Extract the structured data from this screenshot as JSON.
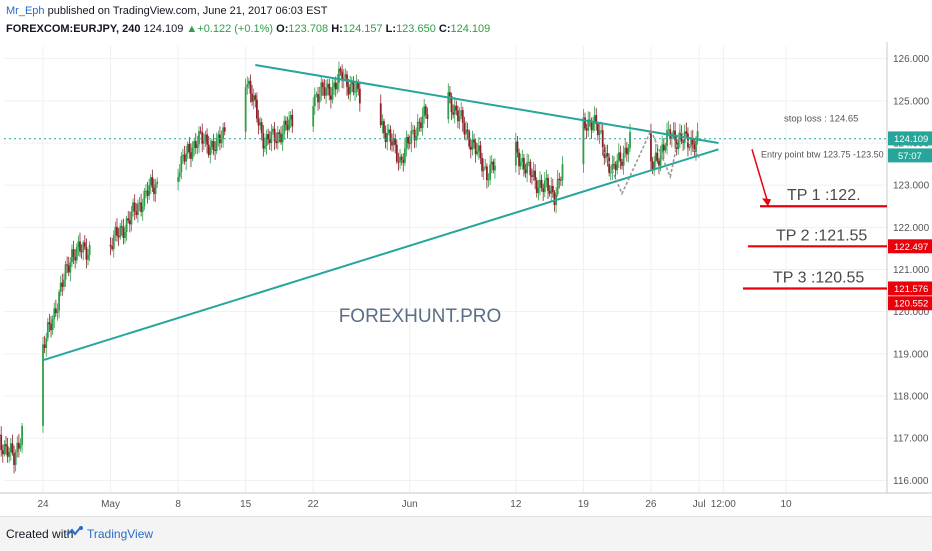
{
  "header": {
    "author": "Mr_Eph",
    "published_text": " published on TradingView.com, June 21, 2017 06:03 EST",
    "symbol": "FOREXCOM:EURJPY, 240",
    "last": "124.109",
    "change": "+0.122 (+0.1%)",
    "open_label": "O:",
    "open": "123.708",
    "high_label": "H:",
    "high": "124.157",
    "low_label": "L:",
    "low": "123.650",
    "close_label": "C:",
    "close": "124.109"
  },
  "watermark": "FOREXHUNT.PRO",
  "footer": {
    "created_with": "Created with",
    "brand": "TradingView"
  },
  "colors": {
    "bull": "#2e9e48",
    "bear": "#8c1f2a",
    "trend": "#26a69a",
    "target": "#e8000b",
    "tick": "#555555",
    "grid": "#eef1f4",
    "price_box": "#26a69a",
    "target_box": "#e8000b"
  },
  "chart_data": {
    "type": "candlestick",
    "title": "FOREXCOM:EURJPY, 240",
    "ylim": [
      115.7,
      126.3
    ],
    "y_ticks": [
      "126.000",
      "125.000",
      "124.000",
      "123.000",
      "122.000",
      "121.000",
      "120.000",
      "119.000",
      "118.000",
      "117.000",
      "116.000"
    ],
    "x_ticks": [
      "24",
      "May",
      "8",
      "15",
      "22",
      "Jun",
      "12",
      "19",
      "26",
      "Jul",
      "12:00",
      "10"
    ],
    "x_dates": [
      "2017-04-24",
      "2017-05-01",
      "2017-05-08",
      "2017-05-15",
      "2017-05-22",
      "2017-06-01",
      "2017-06-12",
      "2017-06-19",
      "2017-06-26",
      "2017-07-01",
      "2017-07-03 12:00",
      "2017-07-10"
    ],
    "data_start": "2017-04-17",
    "data_end": "2017-07-01",
    "last_price": 124.109,
    "last_price_label": "124.109",
    "countdown_label": "57:07",
    "close_path": [
      [
        "2017-04-17",
        116.3
      ],
      [
        "2017-04-19",
        117.1
      ],
      [
        "2017-04-21",
        116.5
      ],
      [
        "2017-04-24",
        119.1
      ],
      [
        "2017-04-27",
        121.4
      ],
      [
        "2017-05-01",
        121.6
      ],
      [
        "2017-05-03",
        122.2
      ],
      [
        "2017-05-05",
        122.9
      ],
      [
        "2017-05-08",
        123.4
      ],
      [
        "2017-05-10",
        124.1
      ],
      [
        "2017-05-12",
        123.9
      ],
      [
        "2017-05-14",
        124.9
      ],
      [
        "2017-05-15",
        125.6
      ],
      [
        "2017-05-17",
        124.0
      ],
      [
        "2017-05-19",
        124.3
      ],
      [
        "2017-05-22",
        125.1
      ],
      [
        "2017-05-24",
        125.3
      ],
      [
        "2017-05-25",
        125.6
      ],
      [
        "2017-05-29",
        124.5
      ],
      [
        "2017-05-31",
        123.6
      ],
      [
        "2017-06-02",
        124.5
      ],
      [
        "2017-06-05",
        125.1
      ],
      [
        "2017-06-07",
        124.2
      ],
      [
        "2017-06-09",
        123.3
      ],
      [
        "2017-06-12",
        123.8
      ],
      [
        "2017-06-14",
        123.1
      ],
      [
        "2017-06-16",
        122.8
      ],
      [
        "2017-06-18",
        124.1
      ],
      [
        "2017-06-20",
        124.6
      ],
      [
        "2017-06-22",
        123.3
      ],
      [
        "2017-06-24",
        124.1
      ],
      [
        "2017-06-26",
        123.4
      ],
      [
        "2017-06-28",
        124.2
      ],
      [
        "2017-06-30",
        124.0
      ],
      [
        "2017-07-01",
        124.1
      ]
    ],
    "annotations": {
      "upper_trend": [
        [
          "2017-05-16",
          125.85
        ],
        [
          "2017-07-03",
          124.0
        ]
      ],
      "lower_trend": [
        [
          "2017-04-24",
          118.85
        ],
        [
          "2017-07-03",
          123.85
        ]
      ],
      "dashed_line_price": 124.1,
      "zigzag": [
        [
          "2017-06-21",
          123.9
        ],
        [
          "2017-06-23",
          122.8
        ],
        [
          "2017-06-26",
          124.3
        ],
        [
          "2017-06-28",
          123.2
        ],
        [
          "2017-06-29",
          124.3
        ],
        [
          "2017-07-01",
          123.65
        ]
      ],
      "stop_loss_text": "stop loss : 124.65",
      "entry_text": "Entry point btw 123.75 -123.50",
      "targets": [
        {
          "text": "TP 1 :122.",
          "price": 122.5,
          "box": ""
        },
        {
          "text": "TP 2 :121.55",
          "price": 121.55,
          "box": "122.497"
        },
        {
          "text": "TP 3 :120.55",
          "price": 120.55,
          "box": "121.576"
        }
      ],
      "extra_box": "120.552",
      "extra_box_price": 120.2
    }
  }
}
